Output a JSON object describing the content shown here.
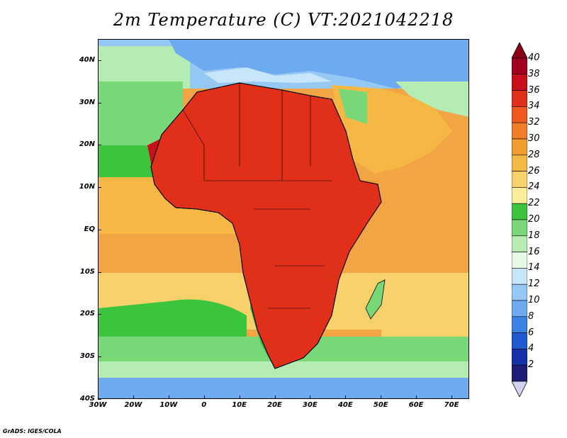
{
  "title": "2m Temperature (C) VT:2021042218",
  "credit": "GrADS: IGES/COLA",
  "map": {
    "lon_range": [
      -30,
      75
    ],
    "lat_range": [
      -40,
      45
    ],
    "lat_labels": [
      "40N",
      "30N",
      "20N",
      "10N",
      "EQ",
      "10S",
      "20S",
      "30S",
      "40S"
    ],
    "lat_values": [
      40,
      30,
      20,
      10,
      0,
      -10,
      -20,
      -30,
      -40
    ],
    "lon_labels": [
      "30W",
      "20W",
      "10W",
      "0",
      "10E",
      "20E",
      "30E",
      "40E",
      "50E",
      "60E",
      "70E"
    ],
    "lon_values": [
      -30,
      -20,
      -10,
      0,
      10,
      20,
      30,
      40,
      50,
      60,
      70
    ],
    "ocean_color": "#f2a544"
  },
  "colorbar": {
    "labels": [
      "40",
      "38",
      "36",
      "34",
      "32",
      "30",
      "28",
      "26",
      "24",
      "22",
      "20",
      "18",
      "16",
      "14",
      "12",
      "10",
      "8",
      "6",
      "4",
      "2"
    ],
    "colors": [
      "#a0001e",
      "#c8101a",
      "#e0301a",
      "#ee5a20",
      "#f07d28",
      "#f39c30",
      "#f5b844",
      "#f7d26a",
      "#faee9a",
      "#3cc43c",
      "#78d878",
      "#b4ecb4",
      "#e6fae6",
      "#c8e6fa",
      "#96c8f5",
      "#6eaaf0",
      "#3c82e6",
      "#1e5ad2",
      "#1432aa",
      "#1e1e78"
    ],
    "top_arrow_color": "#8c0014",
    "bottom_arrow_color": "#d2d2f0"
  }
}
